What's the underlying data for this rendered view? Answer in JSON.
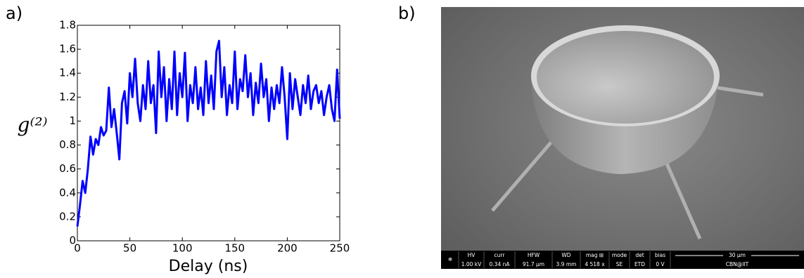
{
  "panels": {
    "a": "a)",
    "b": "b)"
  },
  "chart_data": {
    "type": "line",
    "xlabel": "Delay (ns)",
    "ylabel": "g⁽²⁾",
    "x": [
      0,
      2.5,
      5,
      7.5,
      10,
      12.5,
      15,
      17.5,
      20,
      22.5,
      25,
      27.5,
      30,
      32.5,
      35,
      37.5,
      40,
      42.5,
      45,
      47.5,
      50,
      52.5,
      55,
      57.5,
      60,
      62.5,
      65,
      67.5,
      70,
      72.5,
      75,
      77.5,
      80,
      82.5,
      85,
      87.5,
      90,
      92.5,
      95,
      97.5,
      100,
      102.5,
      105,
      107.5,
      110,
      112.5,
      115,
      117.5,
      120,
      122.5,
      125,
      127.5,
      130,
      132.5,
      135,
      137.5,
      140,
      142.5,
      145,
      147.5,
      150,
      152.5,
      155,
      157.5,
      160,
      162.5,
      165,
      167.5,
      170,
      172.5,
      175,
      177.5,
      180,
      182.5,
      185,
      187.5,
      190,
      192.5,
      195,
      197.5,
      200,
      202.5,
      205,
      207.5,
      210,
      212.5,
      215,
      217.5,
      220,
      222.5,
      225,
      227.5,
      230,
      232.5,
      235,
      237.5,
      240,
      242.5,
      245,
      247.5,
      250
    ],
    "series": [
      {
        "color": "#0000ff",
        "values": [
          0.12,
          0.3,
          0.5,
          0.4,
          0.6,
          0.87,
          0.72,
          0.85,
          0.8,
          0.95,
          0.88,
          0.92,
          1.28,
          0.95,
          1.1,
          0.9,
          0.68,
          1.15,
          1.25,
          0.98,
          1.4,
          1.2,
          1.52,
          1.15,
          1.0,
          1.3,
          1.1,
          1.5,
          1.15,
          1.3,
          0.9,
          1.58,
          1.2,
          1.45,
          1.0,
          1.35,
          1.1,
          1.58,
          1.05,
          1.4,
          1.2,
          1.57,
          1.0,
          1.3,
          1.15,
          1.45,
          1.1,
          1.28,
          1.05,
          1.5,
          1.15,
          1.38,
          1.1,
          1.58,
          1.67,
          1.2,
          1.45,
          1.05,
          1.3,
          1.15,
          1.58,
          1.1,
          1.35,
          1.25,
          1.55,
          1.2,
          1.4,
          1.05,
          1.32,
          1.15,
          1.48,
          1.2,
          1.35,
          1.0,
          1.28,
          1.1,
          1.3,
          1.15,
          1.45,
          1.2,
          0.85,
          1.4,
          1.1,
          1.35,
          1.2,
          1.05,
          1.3,
          1.15,
          1.38,
          1.1,
          1.25,
          1.3,
          1.15,
          1.25,
          1.05,
          1.2,
          1.3,
          1.1,
          1.0,
          1.43,
          1.02
        ]
      }
    ],
    "xlim": [
      0,
      250
    ],
    "xticks": [
      0,
      50,
      100,
      150,
      200,
      250
    ],
    "ylim": [
      0,
      1.8
    ],
    "yticks": [
      0,
      0.2,
      0.4,
      0.6,
      0.8,
      1,
      1.2,
      1.4,
      1.6,
      1.8
    ]
  },
  "sem_info": {
    "cells": [
      {
        "label": "HV",
        "value": "1.00 kV"
      },
      {
        "label": "curr",
        "value": "0.34 nA"
      },
      {
        "label": "HFW",
        "value": "91.7 µm"
      },
      {
        "label": "WD",
        "value": "3.9 mm"
      },
      {
        "label": "mag ⊞",
        "value": "4 518 x"
      },
      {
        "label": "mode",
        "value": "SE"
      },
      {
        "label": "det",
        "value": "ETD"
      },
      {
        "label": "bias",
        "value": "0 V"
      }
    ],
    "scale_bar": "30 µm",
    "institution": "CBN@IIT"
  }
}
